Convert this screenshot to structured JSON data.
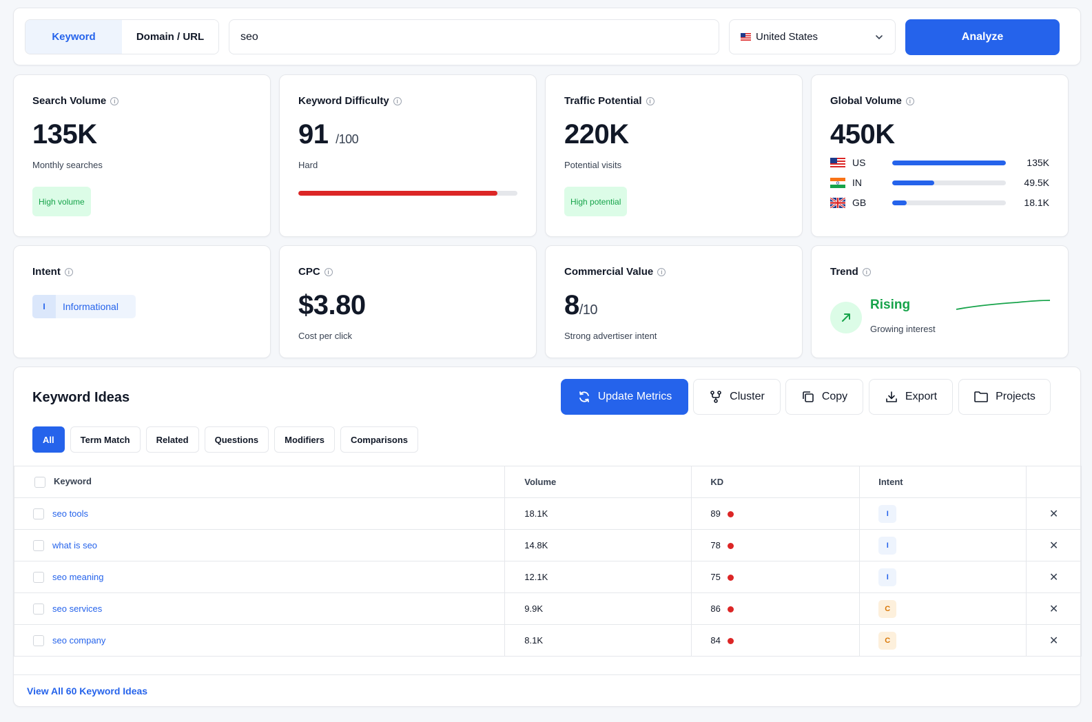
{
  "search_bar": {
    "mode_tabs": [
      {
        "label": "Keyword",
        "active": true
      },
      {
        "label": "Domain / URL",
        "active": false
      }
    ],
    "query": "seo",
    "country": {
      "flag": "us-flag-icon",
      "label": "United States"
    },
    "analyze_label": "Analyze"
  },
  "metrics": {
    "search_volume": {
      "label": "Search Volume",
      "value": "135K",
      "sub": "Monthly searches",
      "badge": "High volume"
    },
    "keyword_difficulty": {
      "label": "Keyword Difficulty",
      "value": "91",
      "of": "/100",
      "level": "Hard",
      "progress_pct": 91
    },
    "traffic_potential": {
      "label": "Traffic Potential",
      "value": "220K",
      "sub": "Potential visits",
      "badge": "High potential"
    },
    "global_volume": {
      "label": "Global Volume",
      "value": "450K",
      "countries": [
        {
          "code": "US",
          "value": "135K",
          "share": 1.0
        },
        {
          "code": "IN",
          "value": "49.5K",
          "share": 0.37
        },
        {
          "code": "GB",
          "value": "18.1K",
          "share": 0.13
        }
      ]
    },
    "intent": {
      "label": "Intent",
      "badge_letter": "I",
      "badge_text": "Informational"
    },
    "cpc": {
      "label": "CPC",
      "value": "$3.80",
      "sub": "Cost per click"
    },
    "commercial_value": {
      "label": "Commercial Value",
      "value": "8",
      "of": "/10",
      "sub": "Strong advertiser intent"
    },
    "trend": {
      "label": "Trend",
      "status": "Rising",
      "sub": "Growing interest"
    }
  },
  "keyword_ideas": {
    "title": "Keyword Ideas",
    "actions": {
      "update": "Update Metrics",
      "cluster": "Cluster",
      "copy": "Copy",
      "export": "Export",
      "projects": "Projects"
    },
    "filters": [
      "All",
      "Term Match",
      "Related",
      "Questions",
      "Modifiers",
      "Comparisons"
    ],
    "columns": {
      "keyword": "Keyword",
      "volume": "Volume",
      "kd": "KD",
      "intent": "Intent"
    },
    "rows": [
      {
        "keyword": "seo tools",
        "volume": "18.1K",
        "kd": "89",
        "intent": "I"
      },
      {
        "keyword": "what is seo",
        "volume": "14.8K",
        "kd": "78",
        "intent": "I"
      },
      {
        "keyword": "seo meaning",
        "volume": "12.1K",
        "kd": "75",
        "intent": "I"
      },
      {
        "keyword": "seo services",
        "volume": "9.9K",
        "kd": "86",
        "intent": "C"
      },
      {
        "keyword": "seo company",
        "volume": "8.1K",
        "kd": "84",
        "intent": "C"
      }
    ],
    "view_all": "View All 60 Keyword Ideas"
  }
}
